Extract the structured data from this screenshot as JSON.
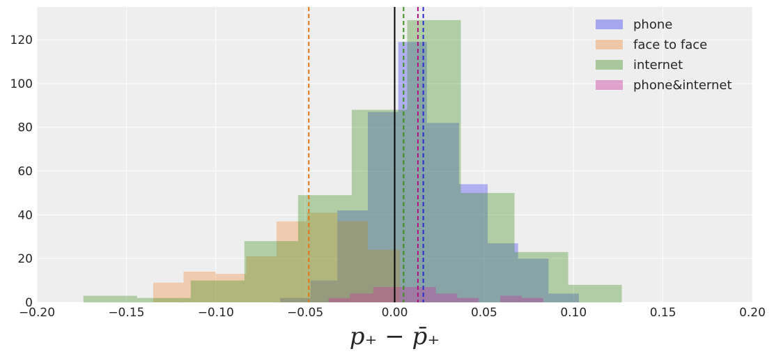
{
  "chart_data": {
    "type": "bar",
    "title": "",
    "xlabel": "p₊ − p̄₊",
    "ylabel": "",
    "xlim": [
      -0.2,
      0.2
    ],
    "ylim": [
      0,
      135
    ],
    "xticks": [
      -0.2,
      -0.15,
      -0.1,
      -0.05,
      0.0,
      0.05,
      0.1,
      0.15,
      0.2
    ],
    "xtick_labels": [
      "−0.20",
      "−0.15",
      "−0.10",
      "−0.05",
      "0.00",
      "0.05",
      "0.10",
      "0.15",
      "0.20"
    ],
    "yticks": [
      0,
      20,
      40,
      60,
      80,
      100,
      120
    ],
    "ytick_labels": [
      "0",
      "20",
      "40",
      "60",
      "80",
      "100",
      "120"
    ],
    "grid": true,
    "legend_position": "top-right",
    "series": [
      {
        "name": "phone",
        "color": "#3a3af0",
        "opacity": 0.35,
        "bins": [
          [
            -0.064,
            -0.047,
            2
          ],
          [
            -0.047,
            -0.032,
            10
          ],
          [
            -0.032,
            -0.015,
            42
          ],
          [
            -0.015,
            0.002,
            87
          ],
          [
            0.002,
            0.018,
            119
          ],
          [
            0.018,
            0.036,
            82
          ],
          [
            0.036,
            0.052,
            54
          ],
          [
            0.052,
            0.069,
            27
          ],
          [
            0.069,
            0.086,
            20
          ],
          [
            0.086,
            0.103,
            4
          ]
        ],
        "mean": 0.016
      },
      {
        "name": "face to face",
        "color": "#f08a3a",
        "opacity": 0.35,
        "bins": [
          [
            -0.135,
            -0.118,
            9
          ],
          [
            -0.118,
            -0.1,
            14
          ],
          [
            -0.1,
            -0.083,
            13
          ],
          [
            -0.083,
            -0.066,
            21
          ],
          [
            -0.066,
            -0.049,
            37
          ],
          [
            -0.049,
            -0.032,
            41
          ],
          [
            -0.032,
            -0.015,
            37
          ],
          [
            -0.015,
            0.003,
            24
          ]
        ],
        "mean": -0.048
      },
      {
        "name": "internet",
        "color": "#3f8f20",
        "opacity": 0.35,
        "bins": [
          [
            -0.174,
            -0.144,
            3
          ],
          [
            -0.144,
            -0.114,
            2
          ],
          [
            -0.114,
            -0.084,
            10
          ],
          [
            -0.084,
            -0.054,
            28
          ],
          [
            -0.054,
            -0.024,
            49
          ],
          [
            -0.024,
            0.007,
            88
          ],
          [
            0.007,
            0.037,
            129
          ],
          [
            0.037,
            0.067,
            50
          ],
          [
            0.067,
            0.097,
            23
          ],
          [
            0.097,
            0.127,
            8
          ]
        ],
        "mean": 0.005
      },
      {
        "name": "phone&internet",
        "color": "#c8309b",
        "opacity": 0.35,
        "bins": [
          [
            -0.037,
            -0.025,
            2
          ],
          [
            -0.025,
            -0.012,
            4
          ],
          [
            -0.012,
            0.0,
            7
          ],
          [
            0.0,
            0.012,
            7
          ],
          [
            0.012,
            0.023,
            7
          ],
          [
            0.023,
            0.035,
            4
          ],
          [
            0.035,
            0.047,
            2
          ],
          [
            0.047,
            0.059,
            0
          ],
          [
            0.059,
            0.071,
            3
          ],
          [
            0.071,
            0.083,
            2
          ]
        ],
        "mean": 0.013
      }
    ],
    "reference_line": {
      "x": 0.0,
      "color": "#000000"
    },
    "mean_line_colors": {
      "phone": "#2a2ad0",
      "face to face": "#e07818",
      "internet": "#3f8f20",
      "phone&internet": "#b0107a"
    }
  }
}
